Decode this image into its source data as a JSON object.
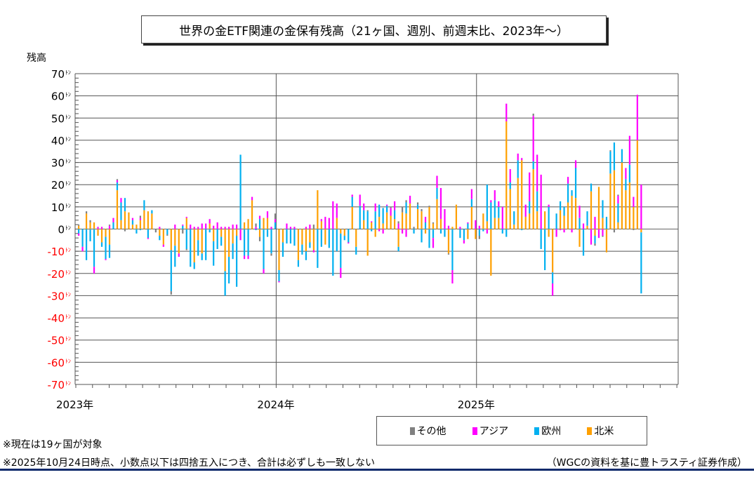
{
  "title": "世界の金ETF関連の金保有残高（21ヶ国、週別、前週末比、2023年～）",
  "notes": [
    "※現在は19ヶ国が対象",
    "※2025年10月24日時点、小数点以下は四捨五入につき、合計は必ずしも一致しない"
  ],
  "source": "（WGCの資料を基に豊トラスティ証券作成）",
  "chart_data": {
    "type": "bar",
    "stacked": true,
    "title": "世界の金ETF関連の金保有残高（21ヶ国、週別、前週末比、2023年～）",
    "ylabel": "残高",
    "yunit": "ﾄﾝ",
    "ylim": [
      -70,
      70
    ],
    "yticks": [
      70,
      60,
      50,
      40,
      30,
      20,
      10,
      0,
      -10,
      -20,
      -30,
      -40,
      -50,
      -60,
      -70
    ],
    "xlabels": [
      "2023年",
      "2024年",
      "2025年"
    ],
    "weeks_per_year": [
      52,
      52,
      43
    ],
    "grid": true,
    "legend_position": "bottom-right",
    "series_names": [
      "その他",
      "アジア",
      "欧州",
      "北米"
    ],
    "colors": {
      "その他": "#808080",
      "アジア": "#ff00ff",
      "欧州": "#00b0f0",
      "北米": "#ffa000"
    },
    "negative_label_color": "#ff0000",
    "weekly_values_order": "[その他, アジア, 欧州, 北米]",
    "weekly_values": [
      [
        0.5,
        -1,
        -2,
        1.5
      ],
      [
        0,
        -2,
        -8,
        0
      ],
      [
        1,
        0,
        -14,
        7
      ],
      [
        1,
        0,
        -5.5,
        3
      ],
      [
        0,
        -3,
        -17,
        3
      ],
      [
        0,
        1,
        0,
        -3
      ],
      [
        0,
        1,
        -2,
        -6
      ],
      [
        0,
        -0.5,
        -10,
        -3.5
      ],
      [
        0.5,
        1.5,
        -6,
        -7
      ],
      [
        0,
        2,
        3,
        0
      ],
      [
        0.5,
        1,
        3.5,
        17.5
      ],
      [
        0,
        2,
        8,
        4
      ],
      [
        -1,
        0,
        6,
        8
      ],
      [
        0,
        0,
        0,
        7.5
      ],
      [
        0,
        1,
        2,
        2
      ],
      [
        0,
        0,
        -2,
        2
      ],
      [
        1,
        1,
        -0.5,
        4
      ],
      [
        0,
        0,
        4.5,
        8.5
      ],
      [
        0,
        -0.5,
        -4,
        8
      ],
      [
        0,
        0,
        1.5,
        7
      ],
      [
        -1.5,
        0,
        0,
        0
      ],
      [
        0,
        1,
        -2,
        -3
      ],
      [
        0,
        -1,
        0,
        -7
      ],
      [
        -0.5,
        0,
        -2.5,
        0
      ],
      [
        -1.5,
        0,
        -18.5,
        -9.5
      ],
      [
        0,
        2,
        -9.5,
        -7.5
      ],
      [
        0,
        -1.5,
        0,
        -11
      ],
      [
        -2,
        0.5,
        1.5,
        0
      ],
      [
        -0.5,
        0.5,
        -9,
        5
      ],
      [
        0,
        2,
        -17,
        0
      ],
      [
        0,
        1,
        -3,
        -15
      ],
      [
        0,
        1,
        -7,
        -5
      ],
      [
        0,
        2.5,
        -3,
        -11
      ],
      [
        0,
        2.5,
        -14,
        0
      ],
      [
        0,
        2,
        -1.5,
        2.5
      ],
      [
        0,
        1.5,
        -11,
        -5.5
      ],
      [
        0,
        3,
        -9,
        0
      ],
      [
        0,
        1,
        -4,
        -3.5
      ],
      [
        0,
        1,
        -11,
        -19
      ],
      [
        0,
        1,
        -12,
        -12.5
      ],
      [
        0,
        2,
        -7,
        -6.5
      ],
      [
        0,
        2,
        -23,
        -3
      ],
      [
        0,
        -5,
        33.5,
        0
      ],
      [
        0,
        -1.5,
        -12,
        3
      ],
      [
        0,
        -1.5,
        -12,
        4.5
      ],
      [
        0,
        1.5,
        0,
        13
      ],
      [
        1.5,
        1,
        -0.5,
        0
      ],
      [
        -2,
        1.5,
        4.5,
        -3.5
      ],
      [
        0,
        -2,
        -18,
        5
      ],
      [
        0,
        3,
        -3.5,
        5
      ],
      [
        -1,
        1,
        -11,
        0
      ],
      [
        2.5,
        1.5,
        3,
        0
      ],
      [
        0,
        -0.5,
        -5,
        -18.5
      ],
      [
        0,
        0,
        -6.5,
        -6
      ],
      [
        0,
        2.5,
        -6.5,
        0
      ],
      [
        0,
        1,
        -6.5,
        0
      ],
      [
        0,
        1,
        -7.5,
        0
      ],
      [
        0,
        0,
        -3,
        -14
      ],
      [
        0,
        0,
        -4.5,
        -7
      ],
      [
        0,
        1,
        -4,
        -10
      ],
      [
        0,
        2,
        -2.5,
        -6
      ],
      [
        2,
        -1,
        0,
        -9.5
      ],
      [
        0,
        0,
        -17.5,
        17.5
      ],
      [
        0,
        1,
        -8,
        3.5
      ],
      [
        0,
        5.5,
        0,
        -7
      ],
      [
        0,
        5,
        -8.5,
        0
      ],
      [
        0,
        12.5,
        -21,
        0
      ],
      [
        0,
        6.5,
        -10,
        5
      ],
      [
        0,
        -4.5,
        -15.5,
        -2
      ],
      [
        0,
        0,
        -2,
        -3
      ],
      [
        0,
        -0.5,
        -6,
        0
      ],
      [
        0,
        1,
        4.5,
        10
      ],
      [
        0,
        0,
        -3.5,
        -8
      ],
      [
        0,
        5,
        10.5,
        0
      ],
      [
        0,
        3,
        4.5,
        4
      ],
      [
        0.5,
        0,
        8,
        -12
      ],
      [
        0,
        0.5,
        -1,
        3
      ],
      [
        0,
        3.5,
        8,
        -3.5
      ],
      [
        0,
        -1,
        5.5,
        5.5
      ],
      [
        0,
        -2,
        7,
        2.5
      ],
      [
        0,
        0.5,
        3,
        7.5
      ],
      [
        0.5,
        3.5,
        0,
        6
      ],
      [
        0,
        4,
        4,
        4.5
      ],
      [
        1,
        2.5,
        -2,
        -8
      ],
      [
        2.5,
        -2,
        0,
        7.5
      ],
      [
        1,
        -3.5,
        5,
        7
      ],
      [
        0,
        3.5,
        0,
        11.5
      ],
      [
        1,
        0,
        -2,
        0
      ],
      [
        1,
        0,
        2,
        9
      ],
      [
        1,
        0,
        -6,
        8
      ],
      [
        0,
        2.5,
        3,
        -2
      ],
      [
        0.5,
        0,
        -8.5,
        10
      ],
      [
        0.5,
        -4.5,
        -4,
        2.5
      ],
      [
        0,
        5.5,
        5,
        13.5
      ],
      [
        0,
        14,
        -2,
        4.5
      ],
      [
        0,
        9,
        -3.5,
        0
      ],
      [
        -0.5,
        1.5,
        0,
        -11
      ],
      [
        0,
        -6,
        -18.5,
        1
      ],
      [
        0,
        0,
        0,
        11
      ],
      [
        0,
        1,
        -4,
        0
      ],
      [
        0,
        -1.5,
        -5,
        0
      ],
      [
        0,
        0.5,
        2.5,
        -4.5
      ],
      [
        0,
        4.5,
        3.5,
        10
      ],
      [
        0,
        4,
        0,
        -4.5
      ],
      [
        -1.5,
        1.5,
        -3,
        0
      ],
      [
        0,
        0,
        -1,
        7
      ],
      [
        0,
        -2,
        16.5,
        3.5
      ],
      [
        0,
        1,
        12,
        -21
      ],
      [
        0,
        4.5,
        8,
        5
      ],
      [
        0,
        2.5,
        5,
        5
      ],
      [
        0,
        10,
        -2,
        0
      ],
      [
        0,
        8,
        -3.5,
        48.5
      ],
      [
        0,
        6,
        3,
        18
      ],
      [
        0,
        0,
        6,
        2
      ],
      [
        0,
        3,
        8,
        23
      ],
      [
        0,
        1,
        -0.5,
        31
      ],
      [
        0,
        5.5,
        0,
        5.5
      ],
      [
        0,
        13,
        5.5,
        7
      ],
      [
        1,
        20.5,
        3.5,
        27
      ],
      [
        0,
        16.5,
        9,
        8
      ],
      [
        0,
        24.5,
        -9,
        0
      ],
      [
        0,
        0,
        -18.5,
        8
      ],
      [
        0,
        1,
        10,
        -3.5
      ],
      [
        0,
        -5.5,
        -5,
        -19.5
      ],
      [
        0,
        -3.5,
        7,
        0
      ],
      [
        0,
        -0.5,
        4,
        8.5
      ],
      [
        0,
        -1.5,
        4,
        6
      ],
      [
        0,
        3,
        8.5,
        12
      ],
      [
        0,
        -1.5,
        2.5,
        15
      ],
      [
        0,
        3.5,
        13.5,
        14
      ],
      [
        0,
        5.5,
        5,
        -8
      ],
      [
        0,
        2.5,
        -12,
        0
      ],
      [
        0,
        0,
        6.5,
        1.5
      ],
      [
        0,
        -7,
        3.5,
        17
      ],
      [
        -1,
        5.5,
        -3.5,
        -3
      ],
      [
        0,
        -4,
        0,
        19
      ],
      [
        -0.5,
        -3,
        8,
        5
      ],
      [
        0,
        0,
        5.5,
        -10.5
      ],
      [
        0.5,
        0,
        10,
        25
      ],
      [
        -1.5,
        0,
        12.5,
        26.5
      ],
      [
        0.5,
        3.5,
        8.5,
        3
      ],
      [
        0,
        0,
        6,
        30
      ],
      [
        0,
        5,
        5,
        17.5
      ],
      [
        0,
        13,
        8,
        21
      ],
      [
        -0.5,
        4.5,
        0,
        10
      ],
      [
        0,
        20.5,
        0,
        40
      ],
      [
        0,
        20,
        -27.5,
        -1.5
      ]
    ]
  }
}
